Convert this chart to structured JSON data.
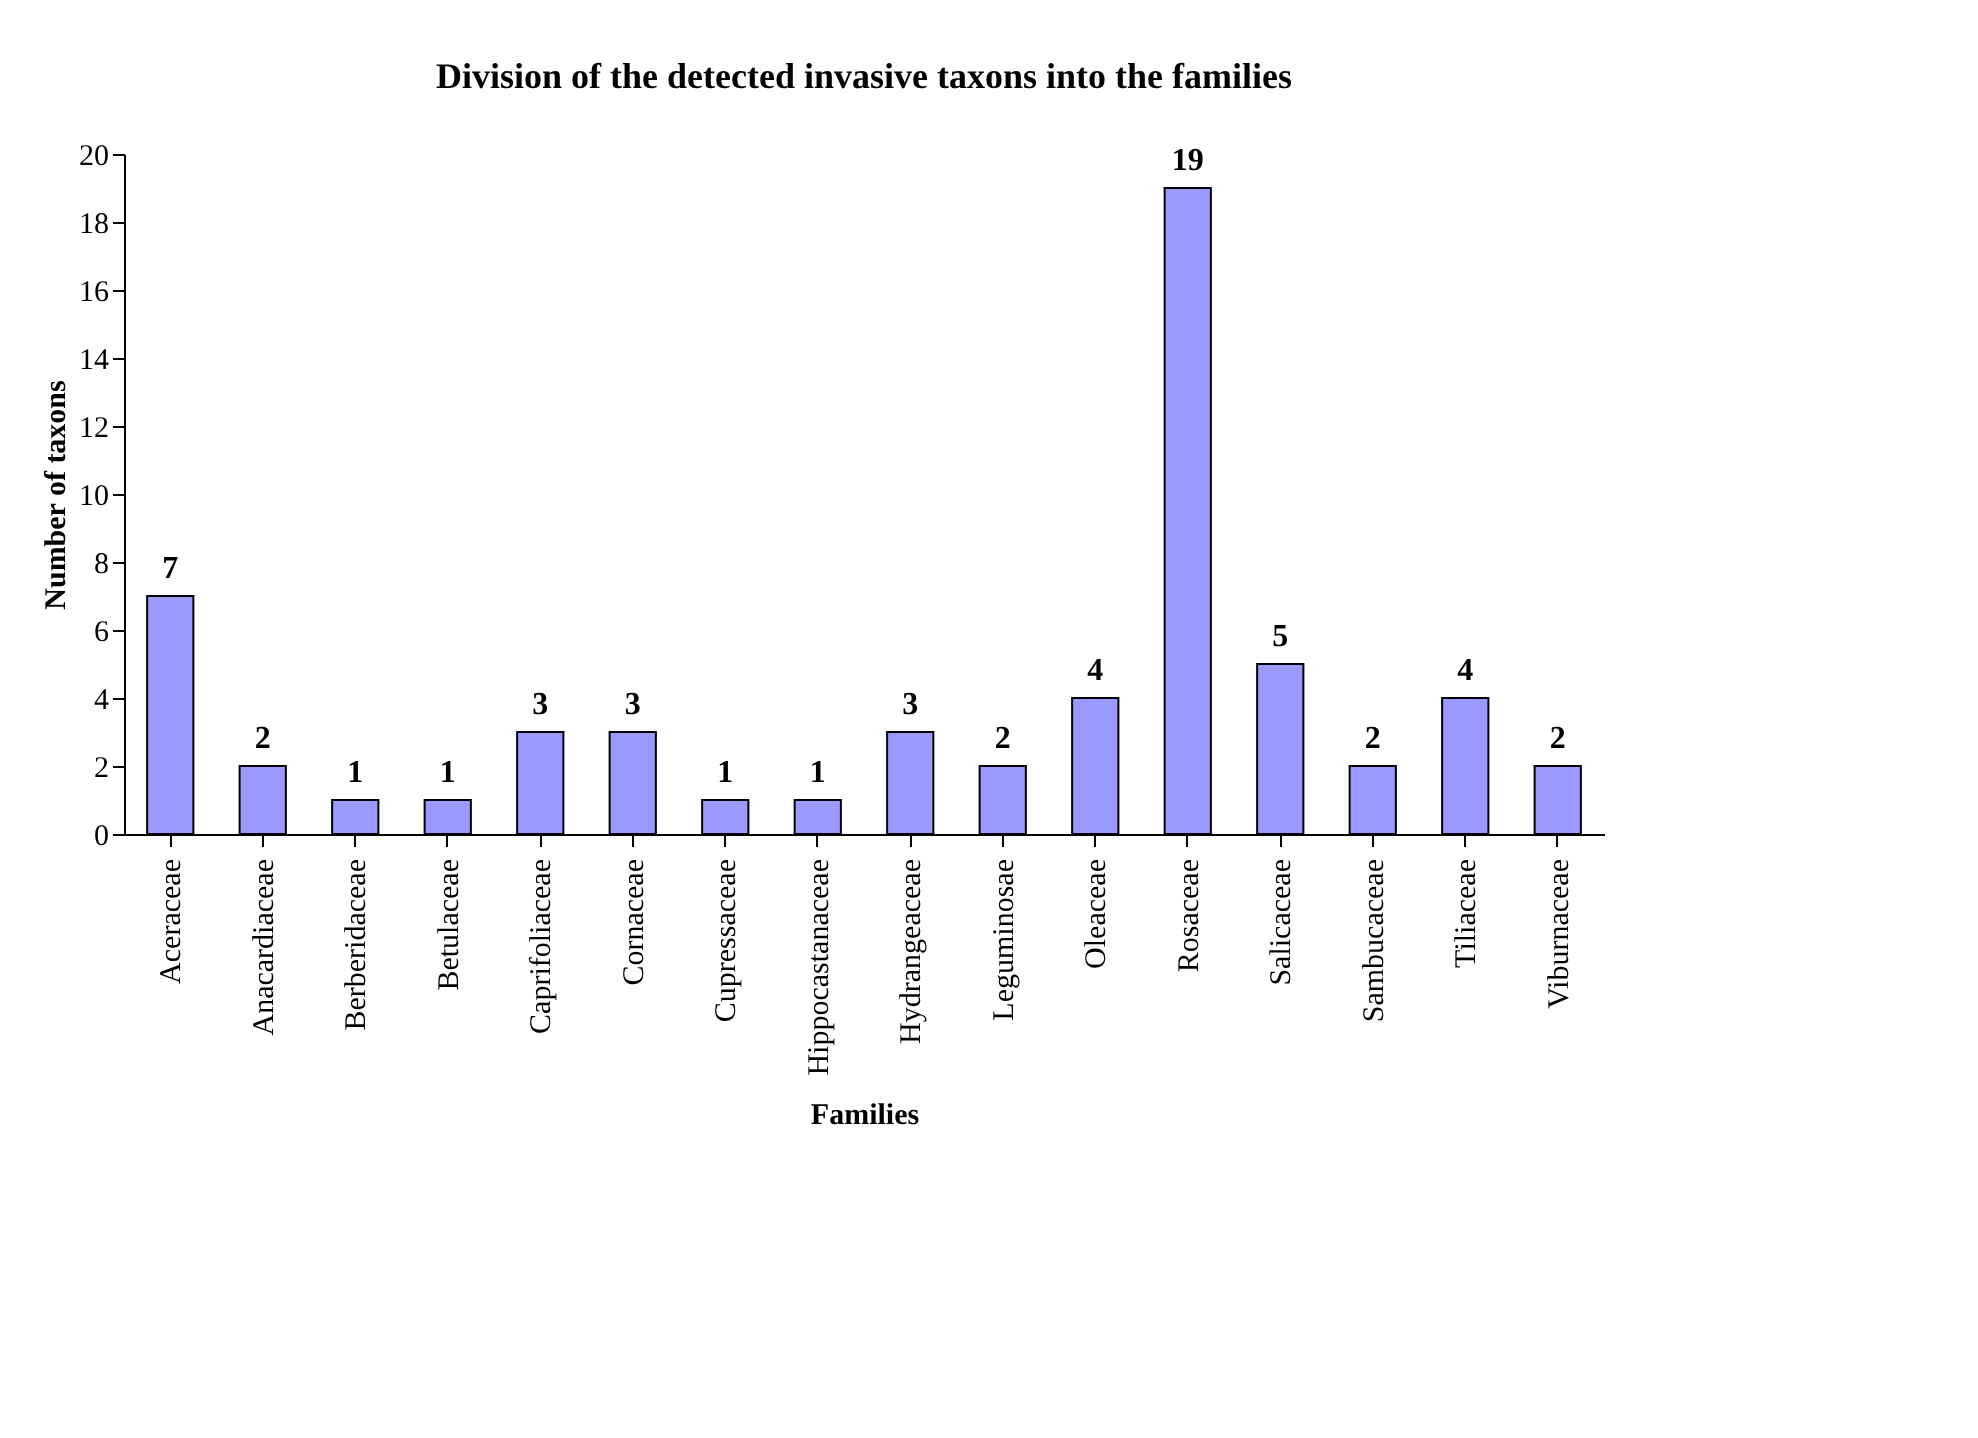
{
  "chart_data": {
    "type": "bar",
    "title": "Division of the detected invasive taxons into the families",
    "xlabel": "Families",
    "ylabel": "Number of taxons",
    "categories": [
      "Aceraceae",
      "Anacardiaceae",
      "Berberidaceae",
      "Betulaceae",
      "Caprifoliaceae",
      "Cornaceae",
      "Cupressaceae",
      "Hippocastanaceae",
      "Hydrangeaceae",
      "Leguminosae",
      "Oleaceae",
      "Rosaceae",
      "Salicaceae",
      "Sambucaceae",
      "Tiliaceae",
      "Viburnaceae"
    ],
    "values": [
      7,
      2,
      1,
      1,
      3,
      3,
      1,
      1,
      3,
      2,
      4,
      19,
      5,
      2,
      4,
      2
    ],
    "color": "#9999ff",
    "ylim": [
      0,
      20
    ],
    "yticks": [
      0,
      2,
      4,
      6,
      8,
      10,
      12,
      14,
      16,
      18,
      20
    ],
    "data_labels": true,
    "grid": false
  }
}
